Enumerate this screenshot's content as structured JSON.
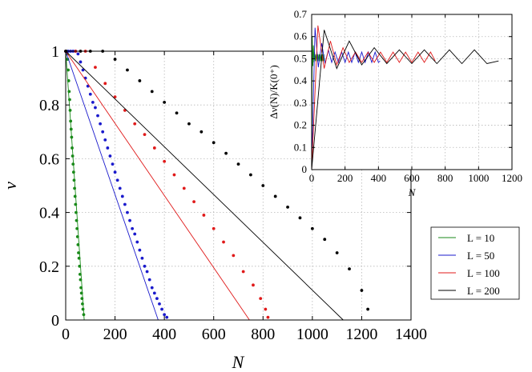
{
  "chart_data": [
    {
      "type": "line",
      "role": "main",
      "xlabel": "N",
      "ylabel": "ν",
      "xlim": [
        0,
        1400
      ],
      "ylim": [
        0,
        1
      ],
      "xticks": [
        0,
        200,
        400,
        600,
        800,
        1000,
        1200,
        1400
      ],
      "yticks": [
        0,
        0.2,
        0.4,
        0.6,
        0.8,
        1
      ],
      "xtick_labels": [
        "0",
        "200",
        "400",
        "600",
        "800",
        "1000",
        "1200",
        "1400"
      ],
      "ytick_labels": [
        "0",
        "0.2",
        "0.4",
        "0.6",
        "0.8",
        "1"
      ],
      "grid": true,
      "legend_position": "right",
      "series": [
        {
          "name": "L = 10",
          "color": "#1a8a1a",
          "line": [
            [
              0,
              1
            ],
            [
              75,
              0
            ]
          ],
          "dots": [
            [
              0,
              1.0
            ],
            [
              2,
              1.0
            ],
            [
              4,
              1.0
            ],
            [
              6,
              0.99
            ],
            [
              8,
              0.97
            ],
            [
              10,
              0.93
            ],
            [
              12,
              0.89
            ],
            [
              14,
              0.85
            ],
            [
              16,
              0.82
            ],
            [
              18,
              0.78
            ],
            [
              20,
              0.74
            ],
            [
              22,
              0.71
            ],
            [
              24,
              0.68
            ],
            [
              26,
              0.64
            ],
            [
              28,
              0.61
            ],
            [
              30,
              0.58
            ],
            [
              32,
              0.55
            ],
            [
              34,
              0.52
            ],
            [
              36,
              0.49
            ],
            [
              38,
              0.46
            ],
            [
              40,
              0.43
            ],
            [
              42,
              0.4
            ],
            [
              44,
              0.37
            ],
            [
              46,
              0.34
            ],
            [
              48,
              0.31
            ],
            [
              50,
              0.28
            ],
            [
              52,
              0.25
            ],
            [
              54,
              0.23
            ],
            [
              56,
              0.2
            ],
            [
              58,
              0.17
            ],
            [
              60,
              0.15
            ],
            [
              62,
              0.12
            ],
            [
              64,
              0.1
            ],
            [
              66,
              0.08
            ],
            [
              68,
              0.06
            ],
            [
              70,
              0.04
            ],
            [
              73,
              0.02
            ]
          ]
        },
        {
          "name": "L = 50",
          "color": "#1a1acc",
          "line": [
            [
              0,
              1
            ],
            [
              375,
              0
            ]
          ],
          "dots": [
            [
              0,
              1.0
            ],
            [
              10,
              1.0
            ],
            [
              20,
              1.0
            ],
            [
              30,
              1.0
            ],
            [
              40,
              1.0
            ],
            [
              50,
              0.99
            ],
            [
              60,
              0.96
            ],
            [
              70,
              0.93
            ],
            [
              80,
              0.9
            ],
            [
              90,
              0.87
            ],
            [
              100,
              0.84
            ],
            [
              110,
              0.81
            ],
            [
              120,
              0.79
            ],
            [
              130,
              0.76
            ],
            [
              140,
              0.73
            ],
            [
              150,
              0.7
            ],
            [
              160,
              0.67
            ],
            [
              170,
              0.64
            ],
            [
              180,
              0.61
            ],
            [
              190,
              0.58
            ],
            [
              200,
              0.55
            ],
            [
              210,
              0.52
            ],
            [
              220,
              0.49
            ],
            [
              230,
              0.46
            ],
            [
              240,
              0.43
            ],
            [
              250,
              0.4
            ],
            [
              260,
              0.37
            ],
            [
              270,
              0.34
            ],
            [
              280,
              0.32
            ],
            [
              290,
              0.29
            ],
            [
              300,
              0.26
            ],
            [
              310,
              0.23
            ],
            [
              320,
              0.2
            ],
            [
              330,
              0.18
            ],
            [
              340,
              0.15
            ],
            [
              350,
              0.12
            ],
            [
              360,
              0.1
            ],
            [
              370,
              0.08
            ],
            [
              380,
              0.06
            ],
            [
              390,
              0.04
            ],
            [
              400,
              0.02
            ],
            [
              410,
              0.01
            ]
          ]
        },
        {
          "name": "L = 100",
          "color": "#e01a1a",
          "line": [
            [
              0,
              1
            ],
            [
              745,
              0
            ]
          ],
          "dots": [
            [
              0,
              1.0
            ],
            [
              40,
              1.0
            ],
            [
              80,
              1.0
            ],
            [
              120,
              0.94
            ],
            [
              160,
              0.88
            ],
            [
              200,
              0.83
            ],
            [
              240,
              0.78
            ],
            [
              280,
              0.73
            ],
            [
              320,
              0.69
            ],
            [
              360,
              0.64
            ],
            [
              400,
              0.59
            ],
            [
              440,
              0.54
            ],
            [
              480,
              0.49
            ],
            [
              520,
              0.44
            ],
            [
              560,
              0.39
            ],
            [
              600,
              0.34
            ],
            [
              640,
              0.29
            ],
            [
              680,
              0.24
            ],
            [
              720,
              0.18
            ],
            [
              760,
              0.13
            ],
            [
              790,
              0.08
            ],
            [
              810,
              0.04
            ],
            [
              820,
              0.01
            ]
          ]
        },
        {
          "name": "L = 200",
          "color": "#000000",
          "line": [
            [
              0,
              1
            ],
            [
              1125,
              0
            ]
          ],
          "dots": [
            [
              0,
              1.0
            ],
            [
              60,
              1.0
            ],
            [
              100,
              1.0
            ],
            [
              150,
              1.0
            ],
            [
              200,
              0.97
            ],
            [
              250,
              0.93
            ],
            [
              300,
              0.89
            ],
            [
              350,
              0.85
            ],
            [
              400,
              0.81
            ],
            [
              450,
              0.77
            ],
            [
              500,
              0.73
            ],
            [
              550,
              0.7
            ],
            [
              600,
              0.66
            ],
            [
              650,
              0.62
            ],
            [
              700,
              0.58
            ],
            [
              750,
              0.54
            ],
            [
              800,
              0.5
            ],
            [
              850,
              0.46
            ],
            [
              900,
              0.42
            ],
            [
              950,
              0.38
            ],
            [
              1000,
              0.34
            ],
            [
              1050,
              0.3
            ],
            [
              1100,
              0.25
            ],
            [
              1150,
              0.19
            ],
            [
              1200,
              0.11
            ],
            [
              1225,
              0.04
            ]
          ]
        }
      ]
    },
    {
      "type": "line",
      "role": "inset",
      "xlabel": "N",
      "ylabel": "Δν(N)/K(0⁺)",
      "xlim": [
        0,
        1200
      ],
      "ylim": [
        0,
        0.7
      ],
      "xticks": [
        0,
        200,
        400,
        600,
        800,
        1000,
        1200
      ],
      "yticks": [
        0,
        0.1,
        0.2,
        0.3,
        0.4,
        0.5,
        0.6,
        0.7
      ],
      "xtick_labels": [
        "0",
        "200",
        "400",
        "600",
        "800",
        "1000",
        "1200"
      ],
      "ytick_labels": [
        "0",
        "0.1",
        "0.2",
        "0.3",
        "0.4",
        "0.5",
        "0.6",
        "0.7"
      ],
      "grid": true,
      "series": [
        {
          "name": "L = 10",
          "color": "#1a8a1a",
          "period": 7,
          "x_end": 75,
          "peak_decay": [
            0.6,
            0.56,
            0.53,
            0.52
          ]
        },
        {
          "name": "L = 50",
          "color": "#1a1acc",
          "period": 40,
          "x_end": 410,
          "peak_decay": [
            0.64,
            0.57,
            0.54,
            0.53
          ]
        },
        {
          "name": "L = 100",
          "color": "#e01a1a",
          "period": 75,
          "x_end": 740,
          "peak_decay": [
            0.65,
            0.58,
            0.55,
            0.53
          ]
        },
        {
          "name": "L = 200",
          "color": "#000000",
          "period": 150,
          "x_end": 1120,
          "peak_decay": [
            0.63,
            0.58,
            0.55,
            0.54
          ]
        }
      ]
    }
  ]
}
